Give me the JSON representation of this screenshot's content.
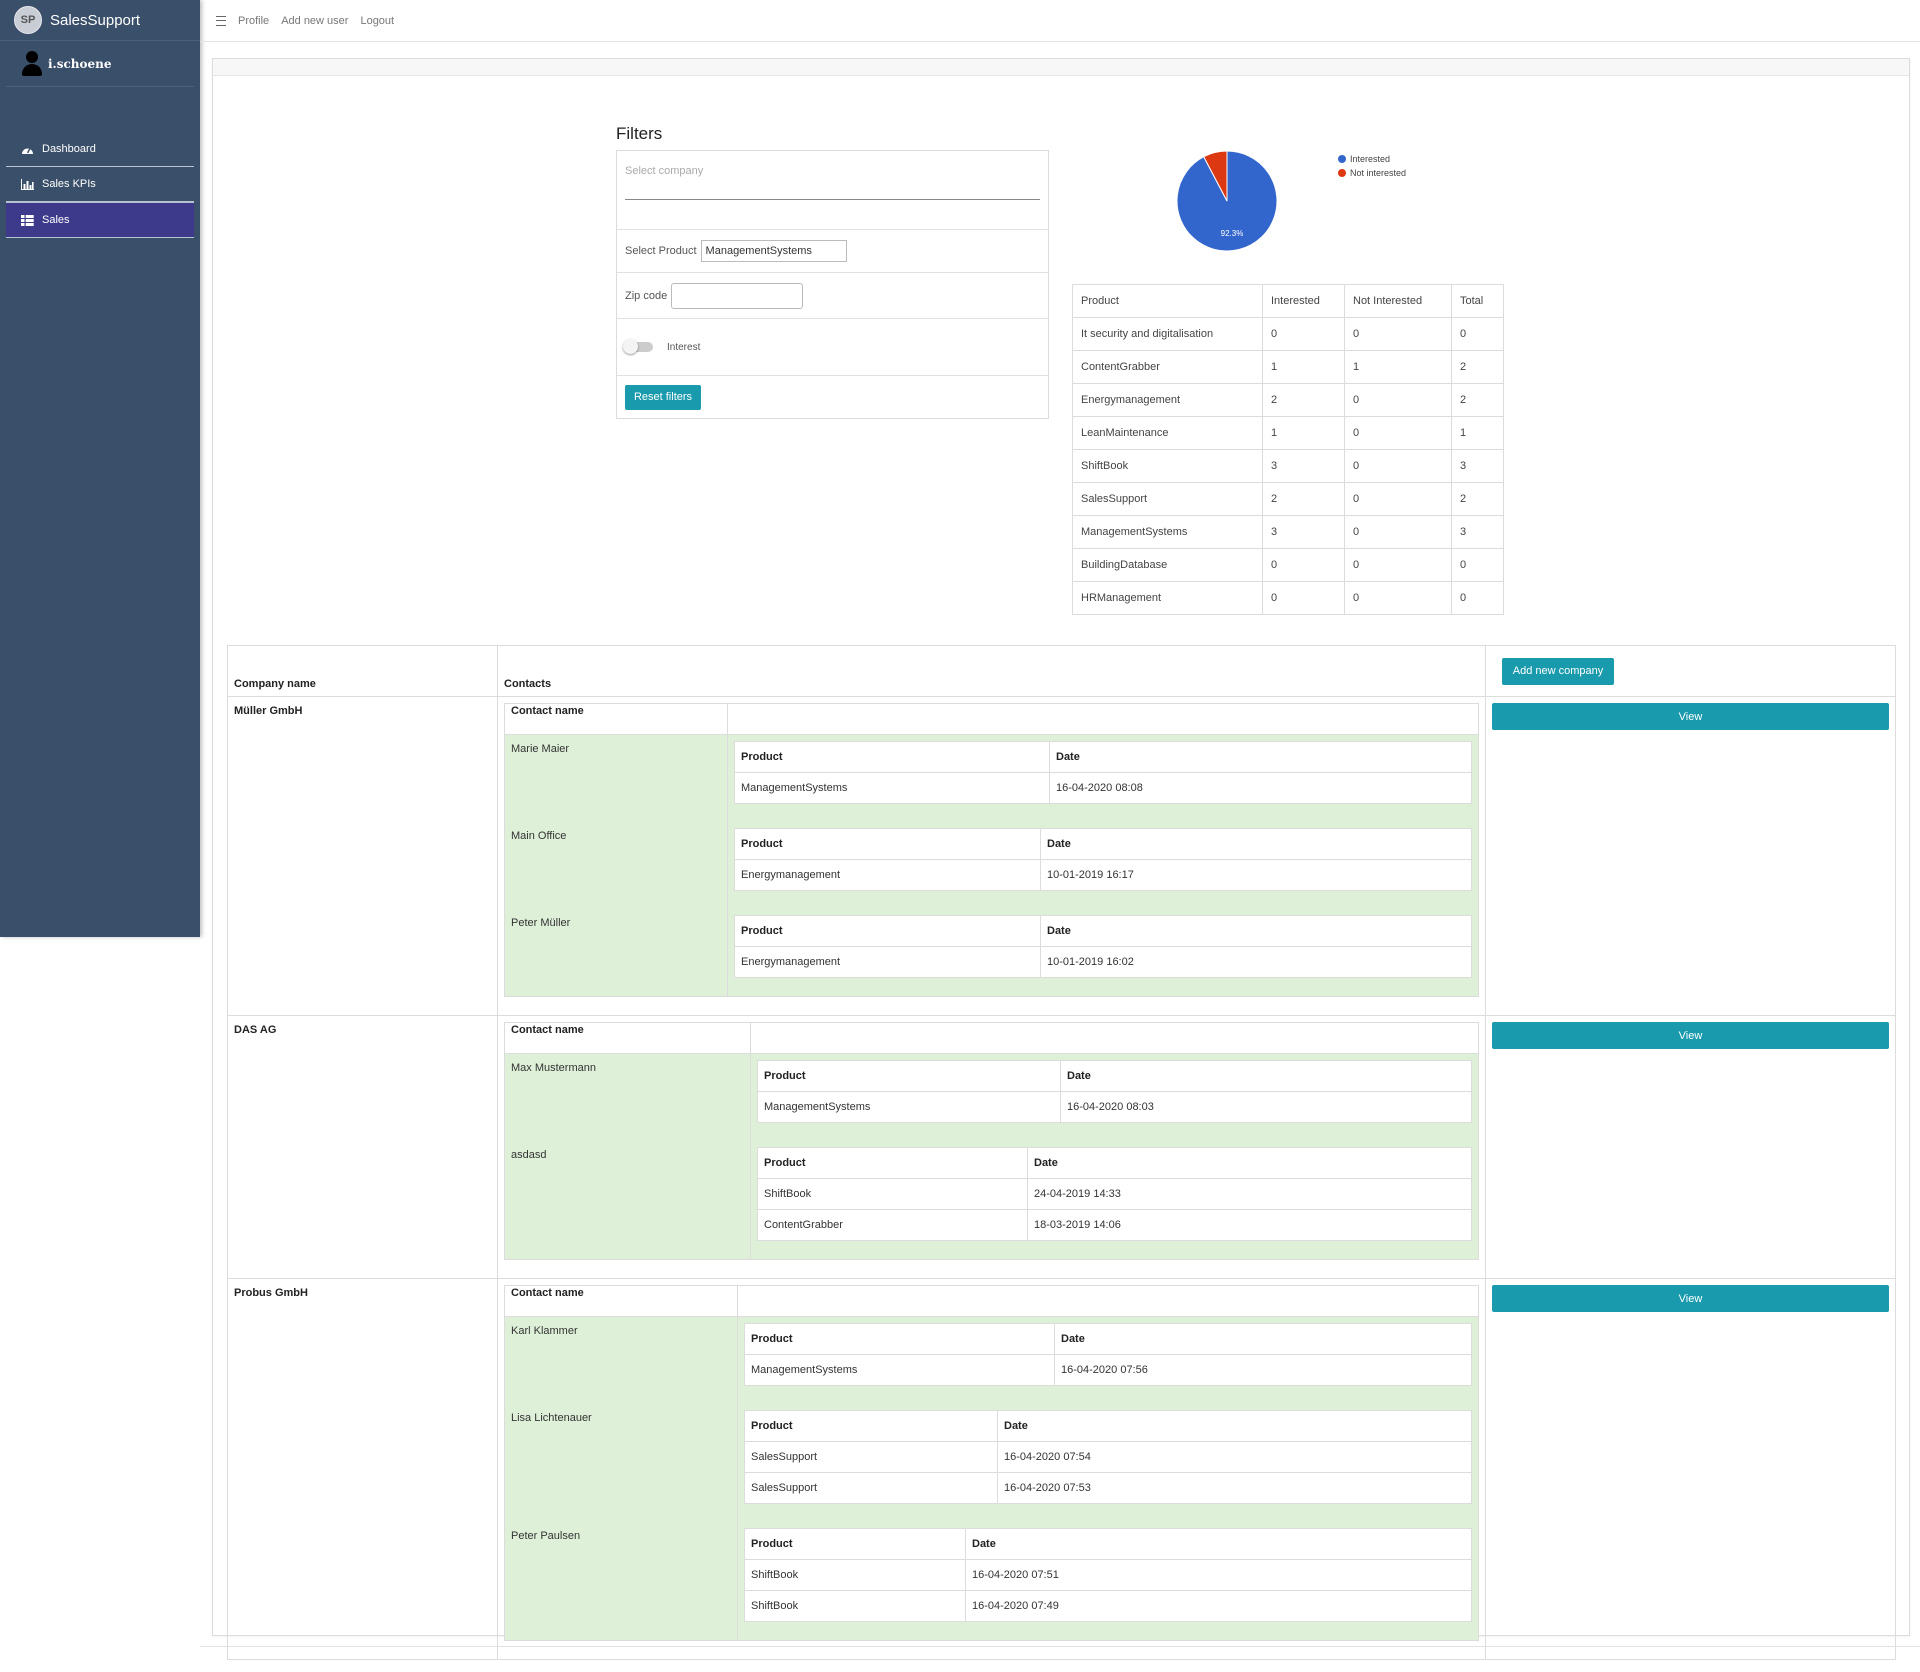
{
  "brand": {
    "name": "SalesSupport",
    "logo_text": "SP"
  },
  "user": {
    "name": "i.schoene"
  },
  "sidebar": {
    "items": [
      {
        "label": "Dashboard",
        "icon": "dashboard-icon",
        "active": false
      },
      {
        "label": "Sales KPIs",
        "icon": "bar-chart-icon",
        "active": false
      },
      {
        "label": "Sales",
        "icon": "grid-icon",
        "active": true
      }
    ]
  },
  "topnav": {
    "profile": "Profile",
    "add_user": "Add new user",
    "logout": "Logout"
  },
  "filters": {
    "title": "Filters",
    "company_placeholder": "Select company",
    "product_label": "Select Product",
    "product_value": "ManagementSystems",
    "zip_label": "Zip code",
    "zip_value": "",
    "interest_label": "Interest",
    "interest_on": false,
    "reset_label": "Reset filters"
  },
  "chart_data": {
    "type": "pie",
    "labels": [
      "Interested",
      "Not interested"
    ],
    "values": [
      92.3,
      7.7
    ],
    "colors": [
      "#3366cc",
      "#dc3912"
    ],
    "data_label": "92.3%",
    "legend": "top-right"
  },
  "stats": {
    "headers": [
      "Product",
      "Interested",
      "Not Interested",
      "Total"
    ],
    "rows": [
      [
        "It security and digitalisation",
        "0",
        "0",
        "0"
      ],
      [
        "ContentGrabber",
        "1",
        "1",
        "2"
      ],
      [
        "Energymanagement",
        "2",
        "0",
        "2"
      ],
      [
        "LeanMaintenance",
        "1",
        "0",
        "1"
      ],
      [
        "ShiftBook",
        "3",
        "0",
        "3"
      ],
      [
        "SalesSupport",
        "2",
        "0",
        "2"
      ],
      [
        "ManagementSystems",
        "3",
        "0",
        "3"
      ],
      [
        "BuildingDatabase",
        "0",
        "0",
        "0"
      ],
      [
        "HRManagement",
        "0",
        "0",
        "0"
      ]
    ]
  },
  "companies_table": {
    "col_company": "Company name",
    "col_contacts": "Contacts",
    "add_label": "Add new company",
    "view_label": "View",
    "contact_name_label": "Contact name",
    "product_label": "Product",
    "date_label": "Date",
    "rows": [
      {
        "company": "Müller GmbH",
        "contacts": [
          {
            "name": "Marie Maier",
            "products": [
              {
                "product": "ManagementSystems",
                "date": "16-04-2020 08:08"
              }
            ]
          },
          {
            "name": "Main Office",
            "products": [
              {
                "product": "Energymanagement",
                "date": "10-01-2019 16:17"
              }
            ]
          },
          {
            "name": "Peter Müller",
            "products": [
              {
                "product": "Energymanagement",
                "date": "10-01-2019 16:02"
              }
            ]
          }
        ]
      },
      {
        "company": "DAS AG",
        "contacts": [
          {
            "name": "Max Mustermann",
            "products": [
              {
                "product": "ManagementSystems",
                "date": "16-04-2020 08:03"
              }
            ]
          },
          {
            "name": "asdasd",
            "products": [
              {
                "product": "ShiftBook",
                "date": "24-04-2019 14:33"
              },
              {
                "product": "ContentGrabber",
                "date": "18-03-2019 14:06"
              }
            ]
          }
        ]
      },
      {
        "company": "Probus GmbH",
        "contacts": [
          {
            "name": "Karl Klammer",
            "products": [
              {
                "product": "ManagementSystems",
                "date": "16-04-2020 07:56"
              }
            ]
          },
          {
            "name": "Lisa Lichtenauer",
            "products": [
              {
                "product": "SalesSupport",
                "date": "16-04-2020 07:54"
              },
              {
                "product": "SalesSupport",
                "date": "16-04-2020 07:53"
              }
            ]
          },
          {
            "name": "Peter Paulsen",
            "products": [
              {
                "product": "ShiftBook",
                "date": "16-04-2020 07:51"
              },
              {
                "product": "ShiftBook",
                "date": "16-04-2020 07:49"
              }
            ]
          }
        ]
      }
    ]
  }
}
